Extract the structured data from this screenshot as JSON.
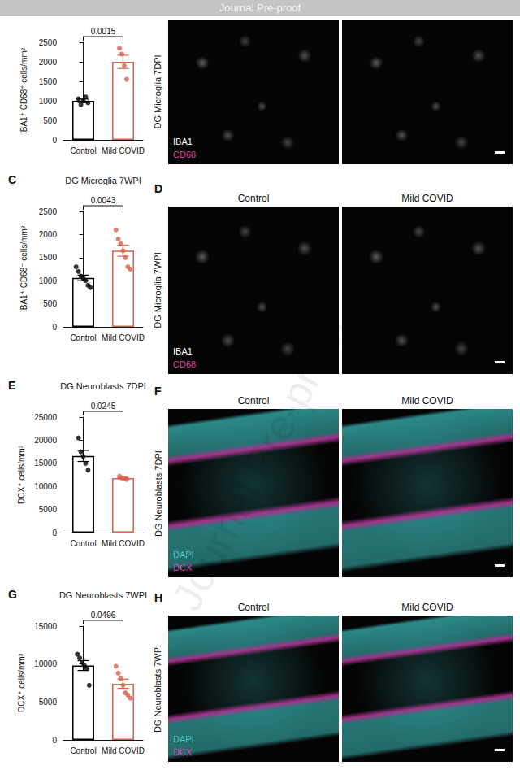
{
  "header": "Journal Pre-proof",
  "watermark": "Journal Pre-proof",
  "chart_data": [
    {
      "type": "bar",
      "y_label": "IBA1⁺ CD68⁺ cells/mm³",
      "categories": [
        "Control",
        "Mild COVID"
      ],
      "values": [
        1000,
        2000
      ],
      "errors": [
        45,
        170
      ],
      "points": [
        [
          1050,
          900,
          1000,
          1100,
          950
        ],
        [
          2350,
          2200,
          1900,
          1550
        ]
      ],
      "colors": [
        "#000000",
        "#d6604d"
      ],
      "ylim": [
        0,
        2500
      ],
      "yticks": [
        0,
        500,
        1000,
        1500,
        2000,
        2500
      ],
      "annotation": "0.0015",
      "grid": false
    },
    {
      "type": "bar",
      "panel": "C",
      "title": "DG Microglia 7WPI",
      "y_label": "IBA1⁺ CD68⁻ cells/mm³",
      "categories": [
        "Control",
        "Mild COVID"
      ],
      "values": [
        1060,
        1650
      ],
      "errors": [
        60,
        120
      ],
      "points": [
        [
          1300,
          1200,
          1100,
          1050,
          1000,
          900,
          850
        ],
        [
          2100,
          1900,
          1800,
          1650,
          1500,
          1300,
          1250
        ]
      ],
      "colors": [
        "#000000",
        "#d6604d"
      ],
      "ylim": [
        0,
        2500
      ],
      "yticks": [
        0,
        500,
        1000,
        1500,
        2000,
        2500
      ],
      "annotation": "0.0043",
      "grid": false
    },
    {
      "type": "bar",
      "panel": "E",
      "title": "DG Neuroblasts 7DPI",
      "y_label": "DCX⁺ cells/mm³",
      "categories": [
        "Control",
        "Mild COVID"
      ],
      "values": [
        16600,
        11800
      ],
      "errors": [
        1200,
        150
      ],
      "points": [
        [
          20500,
          17500,
          16500,
          15000,
          13500
        ],
        [
          12200,
          11800,
          11700,
          11500
        ]
      ],
      "colors": [
        "#000000",
        "#d6604d"
      ],
      "ylim": [
        0,
        25000
      ],
      "yticks": [
        0,
        5000,
        10000,
        15000,
        20000,
        25000
      ],
      "annotation": "0.0245",
      "grid": false
    },
    {
      "type": "bar",
      "panel": "G",
      "title": "DG Neuroblasts 7WPI",
      "y_label": "DCX⁺ cells/mm³",
      "categories": [
        "Control",
        "Mild COVID"
      ],
      "values": [
        9800,
        7400
      ],
      "errors": [
        650,
        600
      ],
      "points": [
        [
          11300,
          10800,
          10200,
          9800,
          9400,
          7200
        ],
        [
          9700,
          8800,
          8100,
          7200,
          6200,
          5900,
          5500
        ]
      ],
      "colors": [
        "#000000",
        "#d6604d"
      ],
      "ylim": [
        0,
        15000
      ],
      "yticks": [
        0,
        5000,
        10000,
        15000
      ],
      "annotation": "0.0496",
      "grid": false
    }
  ],
  "image_panels": [
    {
      "title": "DG Microglia 7DPI",
      "stains": [
        {
          "text": "IBA1",
          "color": "#ffffff"
        },
        {
          "text": "CD68",
          "color": "#e0409a"
        }
      ]
    },
    {
      "panel": "D",
      "title": "DG Microglia 7WPI",
      "columns": [
        "Control",
        "Mild COVID"
      ],
      "stains": [
        {
          "text": "IBA1",
          "color": "#ffffff"
        },
        {
          "text": "CD68",
          "color": "#e0409a"
        }
      ]
    },
    {
      "panel": "F",
      "title": "DG Neuroblasts 7DPI",
      "columns": [
        "Control",
        "Mild COVID"
      ],
      "stains": [
        {
          "text": "DAPI",
          "color": "#45c8c8"
        },
        {
          "text": "DCX",
          "color": "#d848b8"
        }
      ]
    },
    {
      "panel": "H",
      "title": "DG Neuroblasts 7WPI",
      "columns": [
        "Control",
        "Mild COVID"
      ],
      "stains": [
        {
          "text": "DAPI",
          "color": "#45c8c8"
        },
        {
          "text": "DCX",
          "color": "#d848b8"
        }
      ]
    }
  ]
}
